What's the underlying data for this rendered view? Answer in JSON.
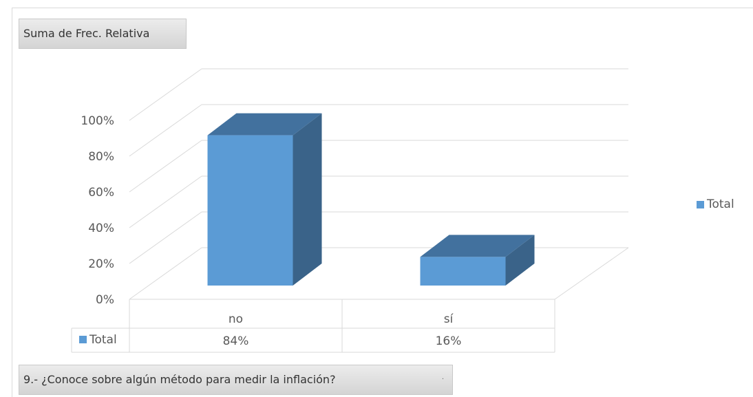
{
  "value_field": {
    "label": "Suma de Frec. Relativa"
  },
  "axis_field": {
    "label": "9.- ¿Conoce sobre algún método para medir la inflación?",
    "dropdown_glyph": "·"
  },
  "legend": {
    "label": "Total"
  },
  "colors": {
    "front": "#5b9bd5",
    "top": "#42719e",
    "side": "#3a6389",
    "grid": "#d9d9d9",
    "text": "#595959"
  },
  "chart_data": {
    "type": "bar",
    "variant": "3d-clustered-column",
    "categories": [
      "no",
      "sí"
    ],
    "series": [
      {
        "name": "Total",
        "values": [
          84,
          16
        ]
      }
    ],
    "value_labels": [
      "84%",
      "16%"
    ],
    "y_ticks": [
      "0%",
      "20%",
      "40%",
      "60%",
      "80%",
      "100%"
    ],
    "ylim": [
      0,
      100
    ],
    "grid": true,
    "legend_position": "right",
    "data_table": true
  }
}
